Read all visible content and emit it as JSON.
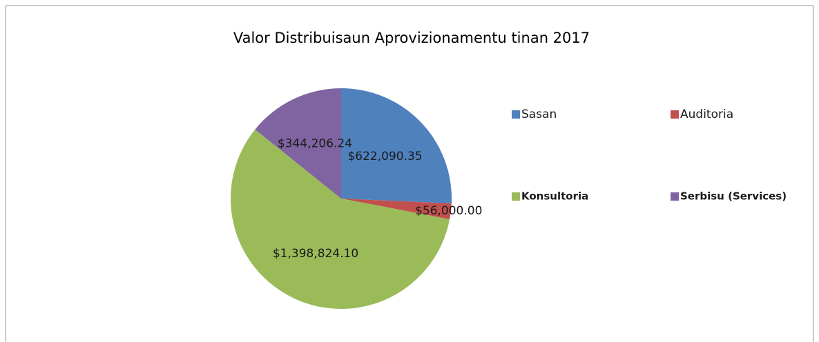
{
  "chart_data": {
    "type": "pie",
    "title": "Valor Distribuisaun Aprovizionamentu tinan 2017",
    "categories": [
      "Sasan",
      "Auditoria",
      "Konsultoria",
      "Serbisu (Services)"
    ],
    "values": [
      622090.35,
      56000.0,
      1398824.1,
      344206.24
    ],
    "value_labels": [
      "$622,090.35",
      "$56,000.00",
      "$1,398,824.10",
      "$344,206.24"
    ],
    "colors": [
      "#4f81bd",
      "#c0504d",
      "#9bbb59",
      "#8064a2"
    ],
    "legend": "right"
  }
}
